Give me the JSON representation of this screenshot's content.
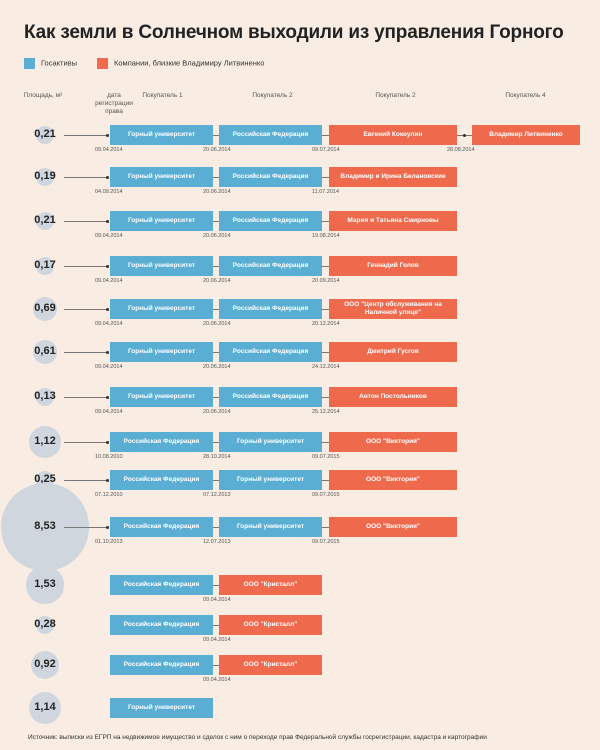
{
  "title": "Как земли в Солнечном выходили из управления Горного",
  "legend": {
    "gos_label": "Госактивы",
    "comp_label": "Компании, близкие Владимиру Литвиненко",
    "gos_color": "#5aaed3",
    "comp_color": "#ef6a4d"
  },
  "headers": {
    "area": "Площадь, м²",
    "date": "дата регистрации права",
    "buyer1": "Покупатель 1",
    "buyer2": "Покупатель 2",
    "buyer3": "Покупатель 2",
    "buyer4": "Покупатель 4"
  },
  "rows": [
    {
      "area": "0,21",
      "area_value": 0.21,
      "start_date": "09.04.2014",
      "chain": [
        {
          "type": "gos",
          "label": "Горный университет",
          "date": "20.06.2014"
        },
        {
          "type": "gos",
          "label": "Российская Федерация",
          "date": "09.07.2014"
        },
        {
          "type": "comp",
          "label": "Евгений  Кокоулин",
          "date": "28.08.2014"
        },
        {
          "type": "comp",
          "label": "Владимир Литвиненко",
          "date": ""
        }
      ]
    },
    {
      "area": "0,19",
      "area_value": 0.19,
      "start_date": "04.09.2014",
      "chain": [
        {
          "type": "gos",
          "label": "Горный университет",
          "date": "20.06.2014"
        },
        {
          "type": "gos",
          "label": "Российская Федерация",
          "date": "11.07.2014"
        },
        {
          "type": "comp",
          "label": "Владимир и Ирина Белановские",
          "date": ""
        }
      ]
    },
    {
      "area": "0,21",
      "area_value": 0.21,
      "start_date": "09.04.2014",
      "chain": [
        {
          "type": "gos",
          "label": "Горный университет",
          "date": "20.06.2014"
        },
        {
          "type": "gos",
          "label": "Российская Федерация",
          "date": "19.08.2014"
        },
        {
          "type": "comp",
          "label": "Мария и Татьяна Смирновы",
          "date": ""
        }
      ]
    },
    {
      "area": "0,17",
      "area_value": 0.17,
      "start_date": "09.04.2014",
      "chain": [
        {
          "type": "gos",
          "label": "Горный университет",
          "date": "20.06.2014"
        },
        {
          "type": "gos",
          "label": "Российская Федерация",
          "date": "20.09.2014"
        },
        {
          "type": "comp",
          "label": "Геннадий  Голов",
          "date": ""
        }
      ]
    },
    {
      "area": "0,69",
      "area_value": 0.69,
      "start_date": "09.04.2014",
      "chain": [
        {
          "type": "gos",
          "label": "Горный университет",
          "date": "20.06.2014"
        },
        {
          "type": "gos",
          "label": "Российская Федерация",
          "date": "20.12.2014"
        },
        {
          "type": "comp",
          "label": "ООО \"Центр обслуживания на Наличной улице\"",
          "date": ""
        }
      ]
    },
    {
      "area": "0,61",
      "area_value": 0.61,
      "start_date": "09.04.2014",
      "chain": [
        {
          "type": "gos",
          "label": "Горный университет",
          "date": "20.06.2014"
        },
        {
          "type": "gos",
          "label": "Российская Федерация",
          "date": "24.12.2014"
        },
        {
          "type": "comp",
          "label": "Дмитрий Гусгов",
          "date": ""
        }
      ]
    },
    {
      "area": "0,13",
      "area_value": 0.13,
      "start_date": "09.04.2014",
      "chain": [
        {
          "type": "gos",
          "label": "Горный университет",
          "date": "20.06.2014"
        },
        {
          "type": "gos",
          "label": "Российская Федерация",
          "date": "25.12.2014"
        },
        {
          "type": "comp",
          "label": "Антон Постольников",
          "date": ""
        }
      ]
    },
    {
      "area": "1,12",
      "area_value": 1.12,
      "start_date": "10.08.2010",
      "chain": [
        {
          "type": "gos",
          "label": "Российская Федерация",
          "date": "28.10.2014"
        },
        {
          "type": "gos",
          "label": "Горный университет",
          "date": "09.07.2015"
        },
        {
          "type": "comp",
          "label": "ООО \"Виктория\"",
          "date": ""
        }
      ]
    },
    {
      "area": "0,25",
      "area_value": 0.25,
      "start_date": "07.12.2010",
      "chain": [
        {
          "type": "gos",
          "label": "Российская Федерация",
          "date": "07.12.2013"
        },
        {
          "type": "gos",
          "label": "Горный университет",
          "date": "09.07.2015"
        },
        {
          "type": "comp",
          "label": "ООО \"Виктория\"",
          "date": ""
        }
      ]
    },
    {
      "area": "8,53",
      "area_value": 8.53,
      "start_date": "01.10.2013",
      "chain": [
        {
          "type": "gos",
          "label": "Российская Федерация",
          "date": "12.07.2013"
        },
        {
          "type": "gos",
          "label": "Горный университет",
          "date": "09.07.2015"
        },
        {
          "type": "comp",
          "label": "ООО \"Виктория\"",
          "date": ""
        }
      ]
    },
    {
      "area": "1,53",
      "area_value": 1.53,
      "start_date": "",
      "chain": [
        {
          "type": "gos",
          "label": "Российская Федерация",
          "date": "09.04.2014"
        },
        {
          "type": "comp",
          "label": "ООО \"Кристалл\"",
          "date": ""
        }
      ]
    },
    {
      "area": "0,28",
      "area_value": 0.28,
      "start_date": "",
      "chain": [
        {
          "type": "gos",
          "label": "Российская Федерация",
          "date": "09.04.2014"
        },
        {
          "type": "comp",
          "label": "ООО \"Кристалл\"",
          "date": ""
        }
      ]
    },
    {
      "area": "0,92",
      "area_value": 0.92,
      "start_date": "",
      "chain": [
        {
          "type": "gos",
          "label": "Российская Федерация",
          "date": "09.04.2014"
        },
        {
          "type": "comp",
          "label": "ООО \"Кристалл\"",
          "date": ""
        }
      ]
    },
    {
      "area": "1,14",
      "area_value": 1.14,
      "start_date": "",
      "chain": [
        {
          "type": "gos",
          "label": "Горный университет",
          "date": ""
        }
      ]
    }
  ],
  "source": "Источник: выписки из ЕГРП на недвижимое имущество и сделок с ним о переходе прав Федеральной службы госрегистрации, кадастра и картографии"
}
